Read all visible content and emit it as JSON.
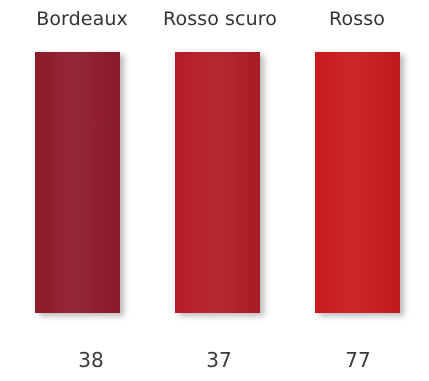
{
  "swatches": [
    {
      "name": "Bordeaux",
      "code": "38",
      "color": "#8e1a2a"
    },
    {
      "name": "Rosso scuro",
      "code": "37",
      "color": "#b31b26"
    },
    {
      "name": "Rosso",
      "code": "77",
      "color": "#c81a1c"
    }
  ]
}
